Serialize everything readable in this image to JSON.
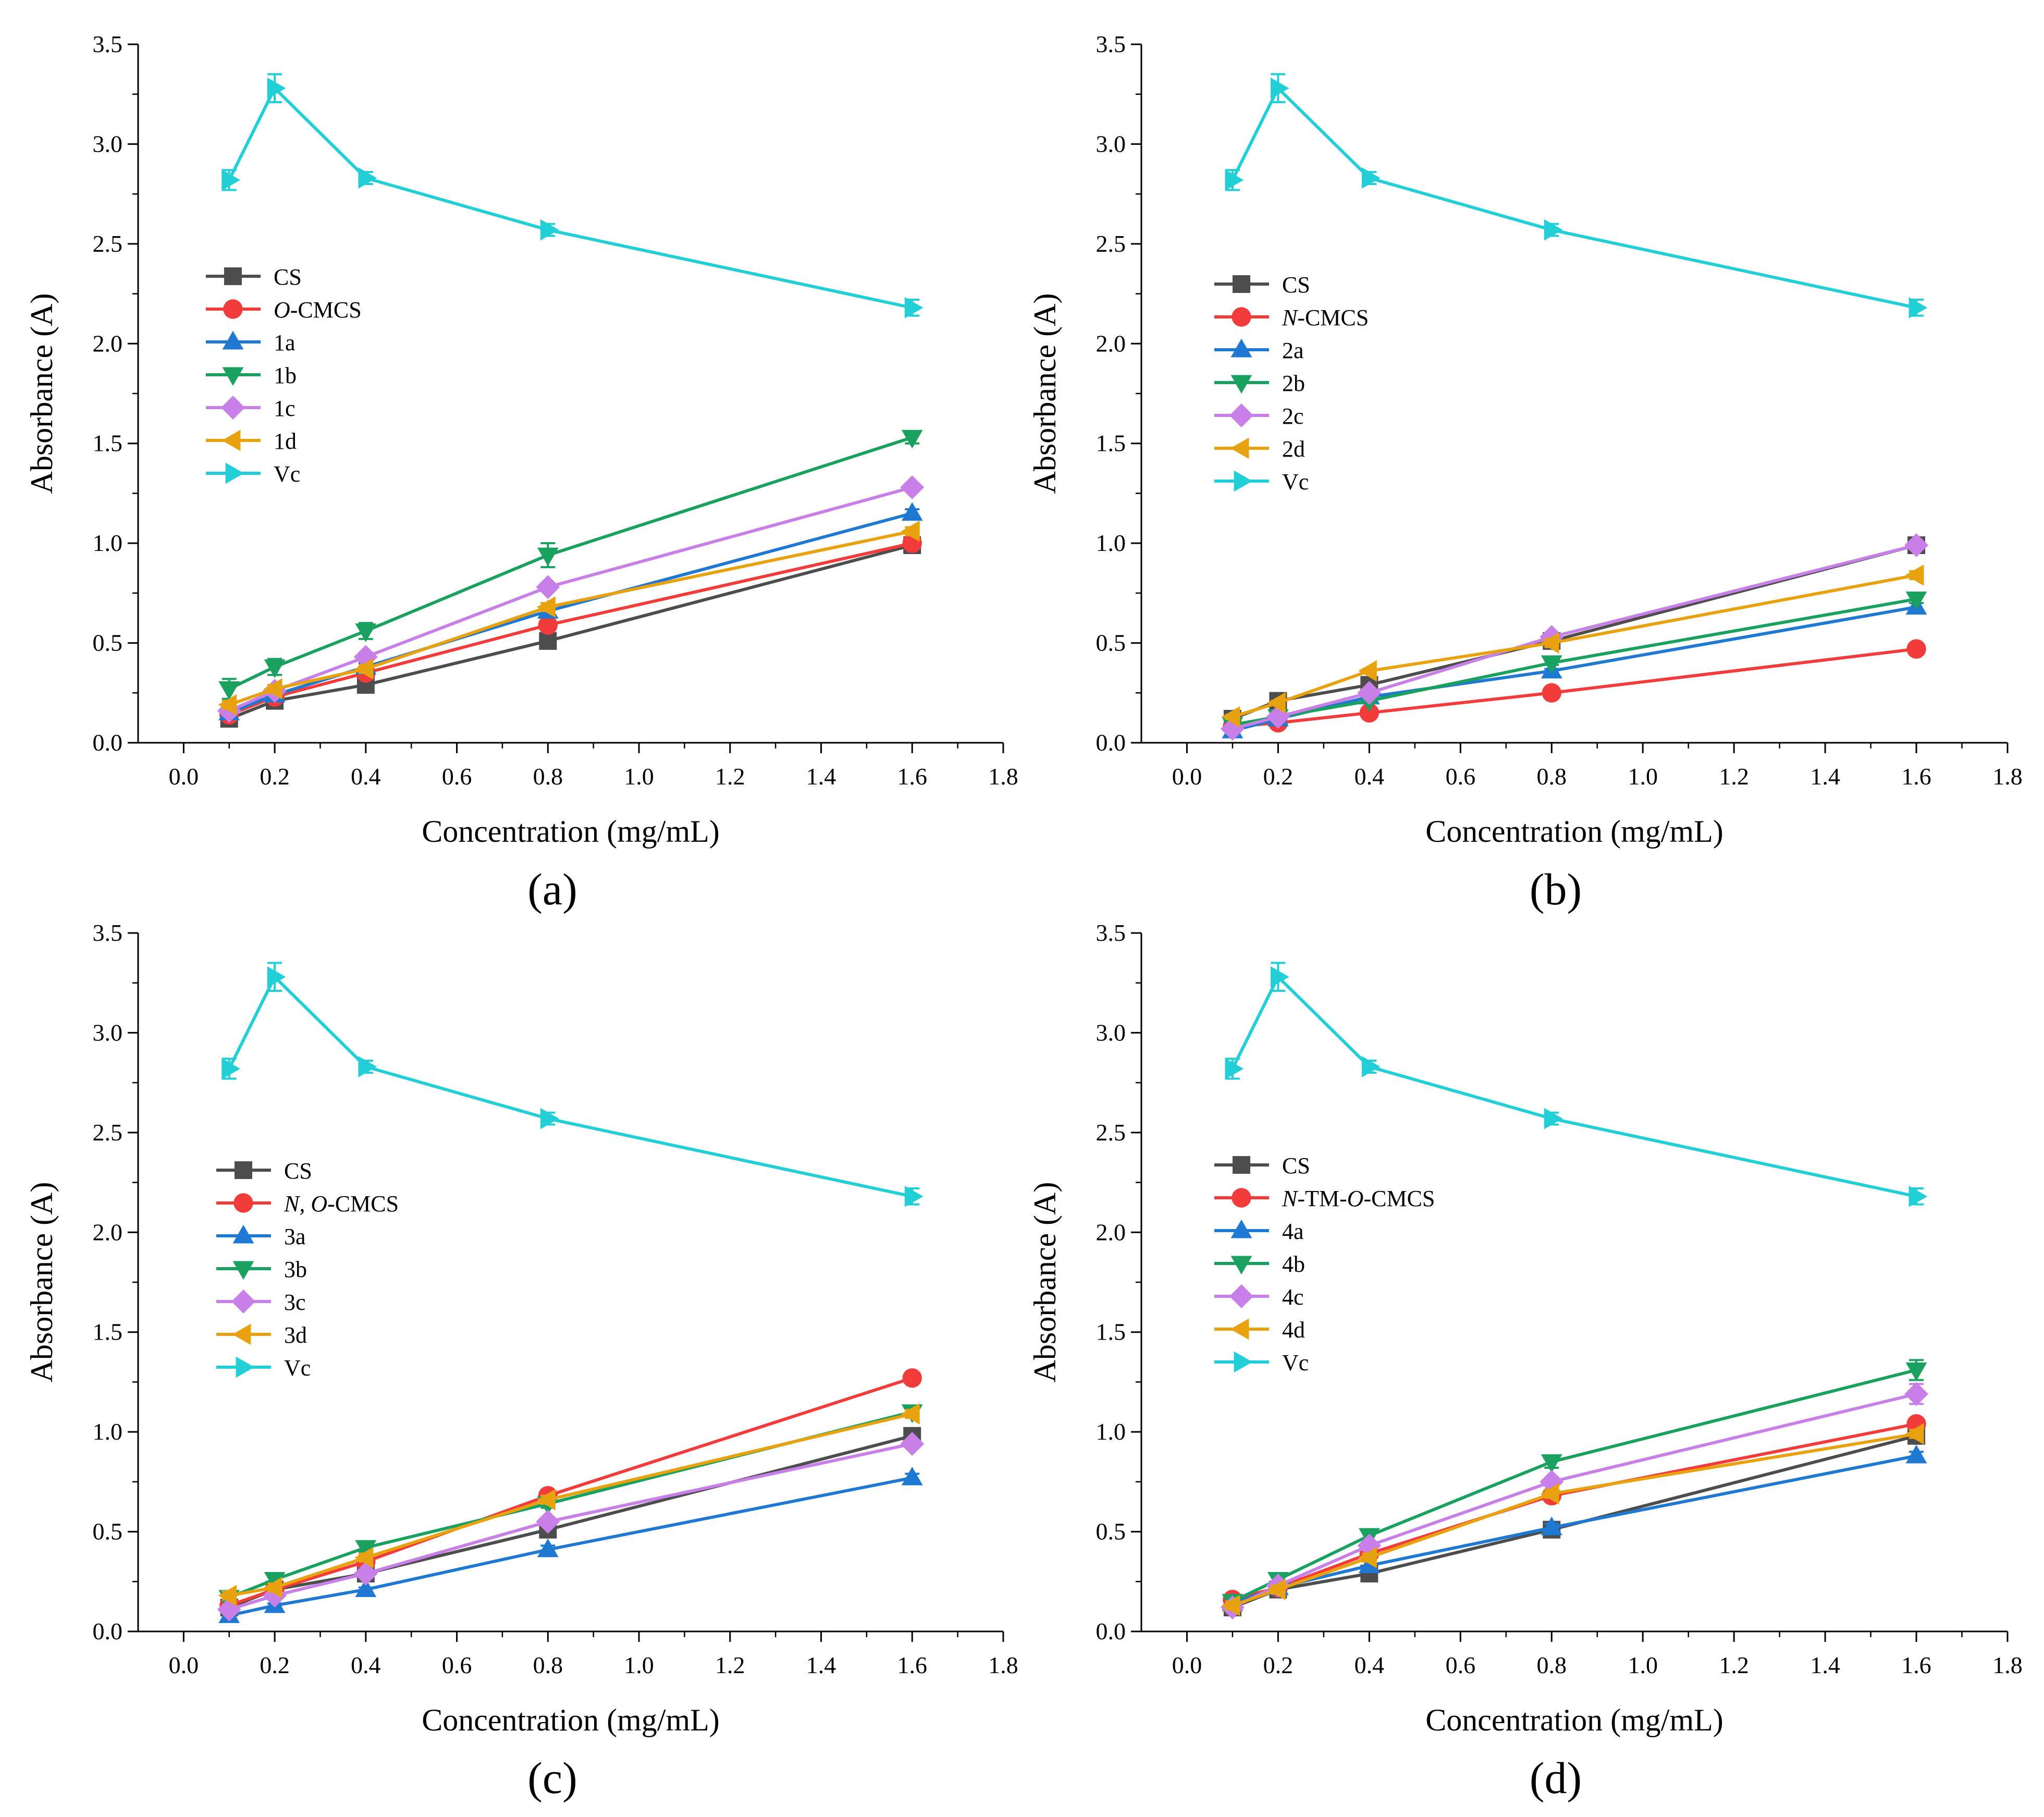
{
  "colors": {
    "CS": "#4d4d4d",
    "red": "#f23c3c",
    "blue": "#1f78d1",
    "green": "#1aa160",
    "violet": "#c880e8",
    "orange": "#e8a210",
    "Vc": "#22cfd6"
  },
  "chart_data": [
    {
      "type": "line",
      "panel_label": "(a)",
      "xlabel": "Concentration (mg/mL)",
      "ylabel": "Absorbance (A)",
      "xlim": [
        -0.1,
        1.8
      ],
      "ylim": [
        0,
        3.5
      ],
      "xticks": [
        "0.0",
        "0.2",
        "0.4",
        "0.6",
        "0.8",
        "1.0",
        "1.2",
        "1.4",
        "1.6",
        "1.8"
      ],
      "yticks": [
        "0.0",
        "0.5",
        "1.0",
        "1.5",
        "2.0",
        "2.5",
        "3.0",
        "3.5"
      ],
      "x": [
        0.1,
        0.2,
        0.4,
        0.8,
        1.6
      ],
      "legend_position": "middle-left",
      "series": [
        {
          "name": "CS",
          "prefix": "",
          "label": "CS",
          "marker": "square",
          "color": "#4d4d4d",
          "values": [
            0.12,
            0.21,
            0.29,
            0.51,
            0.99
          ],
          "errors": [
            0.02,
            0.02,
            0.02,
            0.02,
            0.02
          ]
        },
        {
          "name": "O-CMCS",
          "prefix": "O",
          "label": "-CMCS",
          "marker": "circle",
          "color": "#f23c3c",
          "values": [
            0.14,
            0.23,
            0.35,
            0.59,
            1.0
          ],
          "errors": [
            0.02,
            0.02,
            0.02,
            0.02,
            0.02
          ]
        },
        {
          "name": "1a",
          "prefix": "",
          "label": "1a",
          "marker": "triangle-up",
          "color": "#1f78d1",
          "values": [
            0.15,
            0.24,
            0.38,
            0.66,
            1.15
          ],
          "errors": [
            0.02,
            0.02,
            0.02,
            0.02,
            0.02
          ]
        },
        {
          "name": "1b",
          "prefix": "",
          "label": "1b",
          "marker": "triangle-down",
          "color": "#1aa160",
          "values": [
            0.27,
            0.38,
            0.56,
            0.94,
            1.53
          ],
          "errors": [
            0.05,
            0.04,
            0.04,
            0.06,
            0.03
          ]
        },
        {
          "name": "1c",
          "prefix": "",
          "label": "1c",
          "marker": "diamond",
          "color": "#c880e8",
          "values": [
            0.16,
            0.26,
            0.43,
            0.78,
            1.28
          ],
          "errors": [
            0.02,
            0.02,
            0.02,
            0.02,
            0.02
          ]
        },
        {
          "name": "1d",
          "prefix": "",
          "label": "1d",
          "marker": "triangle-left",
          "color": "#e8a210",
          "values": [
            0.19,
            0.27,
            0.37,
            0.68,
            1.06
          ],
          "errors": [
            0.02,
            0.02,
            0.02,
            0.02,
            0.02
          ]
        },
        {
          "name": "Vc",
          "prefix": "",
          "label": "Vc",
          "marker": "triangle-right",
          "color": "#22cfd6",
          "values": [
            2.82,
            3.28,
            2.83,
            2.57,
            2.18
          ],
          "errors": [
            0.05,
            0.07,
            0.03,
            0.03,
            0.04
          ]
        }
      ]
    },
    {
      "type": "line",
      "panel_label": "(b)",
      "xlabel": "Concentration (mg/mL)",
      "ylabel": "Absorbance (A)",
      "xlim": [
        -0.1,
        1.8
      ],
      "ylim": [
        0,
        3.5
      ],
      "xticks": [
        "0.0",
        "0.2",
        "0.4",
        "0.6",
        "0.8",
        "1.0",
        "1.2",
        "1.4",
        "1.6",
        "1.8"
      ],
      "yticks": [
        "0.0",
        "0.5",
        "1.0",
        "1.5",
        "2.0",
        "2.5",
        "3.0",
        "3.5"
      ],
      "x": [
        0.1,
        0.2,
        0.4,
        0.8,
        1.6
      ],
      "legend_position": "middle-left",
      "series": [
        {
          "name": "CS",
          "prefix": "",
          "label": "CS",
          "marker": "square",
          "color": "#4d4d4d",
          "values": [
            0.12,
            0.21,
            0.29,
            0.51,
            0.99
          ],
          "errors": [
            0.02,
            0.02,
            0.02,
            0.02,
            0.02
          ]
        },
        {
          "name": "N-CMCS",
          "prefix": "N",
          "label": "-CMCS",
          "marker": "circle",
          "color": "#f23c3c",
          "values": [
            0.08,
            0.1,
            0.15,
            0.25,
            0.47
          ],
          "errors": [
            0.01,
            0.01,
            0.01,
            0.01,
            0.01
          ]
        },
        {
          "name": "2a",
          "prefix": "",
          "label": "2a",
          "marker": "triangle-up",
          "color": "#1f78d1",
          "values": [
            0.06,
            0.12,
            0.23,
            0.36,
            0.68
          ],
          "errors": [
            0.01,
            0.01,
            0.01,
            0.01,
            0.02
          ]
        },
        {
          "name": "2b",
          "prefix": "",
          "label": "2b",
          "marker": "triangle-down",
          "color": "#1aa160",
          "values": [
            0.09,
            0.13,
            0.21,
            0.4,
            0.72
          ],
          "errors": [
            0.01,
            0.01,
            0.01,
            0.01,
            0.02
          ]
        },
        {
          "name": "2c",
          "prefix": "",
          "label": "2c",
          "marker": "diamond",
          "color": "#c880e8",
          "values": [
            0.07,
            0.13,
            0.25,
            0.53,
            0.99
          ],
          "errors": [
            0.01,
            0.01,
            0.01,
            0.02,
            0.02
          ]
        },
        {
          "name": "2d",
          "prefix": "",
          "label": "2d",
          "marker": "triangle-left",
          "color": "#e8a210",
          "values": [
            0.13,
            0.2,
            0.36,
            0.5,
            0.84
          ],
          "errors": [
            0.01,
            0.01,
            0.01,
            0.02,
            0.02
          ]
        },
        {
          "name": "Vc",
          "prefix": "",
          "label": "Vc",
          "marker": "triangle-right",
          "color": "#22cfd6",
          "values": [
            2.82,
            3.28,
            2.83,
            2.57,
            2.18
          ],
          "errors": [
            0.05,
            0.07,
            0.03,
            0.03,
            0.04
          ]
        }
      ]
    },
    {
      "type": "line",
      "panel_label": "(c)",
      "xlabel": "Concentration (mg/mL)",
      "ylabel": "Absorbance (A)",
      "xlim": [
        -0.1,
        1.8
      ],
      "ylim": [
        0,
        3.5
      ],
      "xticks": [
        "0.0",
        "0.2",
        "0.4",
        "0.6",
        "0.8",
        "1.0",
        "1.2",
        "1.4",
        "1.6",
        "1.8"
      ],
      "yticks": [
        "0.0",
        "0.5",
        "1.0",
        "1.5",
        "2.0",
        "2.5",
        "3.0",
        "3.5"
      ],
      "x": [
        0.1,
        0.2,
        0.4,
        0.8,
        1.6
      ],
      "legend_position": "middle-left",
      "series": [
        {
          "name": "CS",
          "prefix": "",
          "label": "CS",
          "marker": "square",
          "color": "#4d4d4d",
          "values": [
            0.12,
            0.21,
            0.29,
            0.51,
            0.98
          ],
          "errors": [
            0.02,
            0.02,
            0.02,
            0.02,
            0.02
          ]
        },
        {
          "name": "N, O-CMCS",
          "prefix": "N, O",
          "label": "-CMCS",
          "marker": "circle",
          "color": "#f23c3c",
          "values": [
            0.13,
            0.21,
            0.35,
            0.68,
            1.27
          ],
          "errors": [
            0.02,
            0.02,
            0.02,
            0.02,
            0.02
          ]
        },
        {
          "name": "3a",
          "prefix": "",
          "label": "3a",
          "marker": "triangle-up",
          "color": "#1f78d1",
          "values": [
            0.08,
            0.13,
            0.21,
            0.41,
            0.77
          ],
          "errors": [
            0.01,
            0.01,
            0.01,
            0.02,
            0.02
          ]
        },
        {
          "name": "3b",
          "prefix": "",
          "label": "3b",
          "marker": "triangle-down",
          "color": "#1aa160",
          "values": [
            0.17,
            0.26,
            0.42,
            0.64,
            1.1
          ],
          "errors": [
            0.02,
            0.02,
            0.02,
            0.02,
            0.02
          ]
        },
        {
          "name": "3c",
          "prefix": "",
          "label": "3c",
          "marker": "diamond",
          "color": "#c880e8",
          "values": [
            0.11,
            0.18,
            0.29,
            0.55,
            0.94
          ],
          "errors": [
            0.01,
            0.01,
            0.02,
            0.02,
            0.02
          ]
        },
        {
          "name": "3d",
          "prefix": "",
          "label": "3d",
          "marker": "triangle-left",
          "color": "#e8a210",
          "values": [
            0.18,
            0.22,
            0.37,
            0.66,
            1.09
          ],
          "errors": [
            0.02,
            0.02,
            0.02,
            0.02,
            0.02
          ]
        },
        {
          "name": "Vc",
          "prefix": "",
          "label": "Vc",
          "marker": "triangle-right",
          "color": "#22cfd6",
          "values": [
            2.82,
            3.28,
            2.83,
            2.57,
            2.18
          ],
          "errors": [
            0.05,
            0.07,
            0.03,
            0.03,
            0.04
          ]
        }
      ]
    },
    {
      "type": "line",
      "panel_label": "(d)",
      "xlabel": "Concentration (mg/mL)",
      "ylabel": "Absorbance (A)",
      "xlim": [
        -0.1,
        1.8
      ],
      "ylim": [
        0,
        3.5
      ],
      "xticks": [
        "0.0",
        "0.2",
        "0.4",
        "0.6",
        "0.8",
        "1.0",
        "1.2",
        "1.4",
        "1.6",
        "1.8"
      ],
      "yticks": [
        "0.0",
        "0.5",
        "1.0",
        "1.5",
        "2.0",
        "2.5",
        "3.0",
        "3.5"
      ],
      "x": [
        0.1,
        0.2,
        0.4,
        0.8,
        1.6
      ],
      "legend_position": "middle-left",
      "series": [
        {
          "name": "CS",
          "prefix": "",
          "label": "CS",
          "marker": "square",
          "color": "#4d4d4d",
          "values": [
            0.12,
            0.21,
            0.29,
            0.51,
            0.98
          ],
          "errors": [
            0.02,
            0.02,
            0.02,
            0.02,
            0.02
          ]
        },
        {
          "name": "N-TM-O-CMCS",
          "prefix": "N",
          "label": "-TM-",
          "suffix_italic": "O",
          "suffix": "-CMCS",
          "marker": "circle",
          "color": "#f23c3c",
          "values": [
            0.16,
            0.22,
            0.39,
            0.68,
            1.04
          ],
          "errors": [
            0.02,
            0.02,
            0.02,
            0.02,
            0.02
          ]
        },
        {
          "name": "4a",
          "prefix": "",
          "label": "4a",
          "marker": "triangle-up",
          "color": "#1f78d1",
          "values": [
            0.14,
            0.22,
            0.33,
            0.52,
            0.88
          ],
          "errors": [
            0.02,
            0.02,
            0.02,
            0.02,
            0.02
          ]
        },
        {
          "name": "4b",
          "prefix": "",
          "label": "4b",
          "marker": "triangle-down",
          "color": "#1aa160",
          "values": [
            0.15,
            0.26,
            0.48,
            0.85,
            1.31
          ],
          "errors": [
            0.02,
            0.02,
            0.03,
            0.03,
            0.05
          ]
        },
        {
          "name": "4c",
          "prefix": "",
          "label": "4c",
          "marker": "diamond",
          "color": "#c880e8",
          "values": [
            0.12,
            0.23,
            0.43,
            0.75,
            1.19
          ],
          "errors": [
            0.02,
            0.02,
            0.02,
            0.02,
            0.05
          ]
        },
        {
          "name": "4d",
          "prefix": "",
          "label": "4d",
          "marker": "triangle-left",
          "color": "#e8a210",
          "values": [
            0.13,
            0.21,
            0.37,
            0.69,
            0.99
          ],
          "errors": [
            0.02,
            0.02,
            0.02,
            0.02,
            0.02
          ]
        },
        {
          "name": "Vc",
          "prefix": "",
          "label": "Vc",
          "marker": "triangle-right",
          "color": "#22cfd6",
          "values": [
            2.82,
            3.28,
            2.83,
            2.57,
            2.18
          ],
          "errors": [
            0.05,
            0.07,
            0.03,
            0.03,
            0.04
          ]
        }
      ]
    }
  ]
}
